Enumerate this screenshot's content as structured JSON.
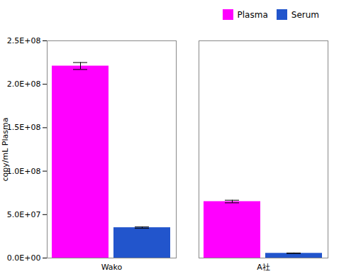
{
  "chart_data": {
    "type": "bar",
    "categories": [
      "Wako",
      "A社"
    ],
    "series": [
      {
        "name": "Plasma",
        "color": "#FF00FF",
        "values": [
          221000000,
          65000000
        ],
        "errors": [
          4000000,
          1500000
        ]
      },
      {
        "name": "Serum",
        "color": "#2255CC",
        "values": [
          35000000,
          5500000
        ],
        "errors": [
          800000,
          300000
        ]
      }
    ],
    "ylabel": "copy/mL Plasma",
    "ylim": [
      0,
      250000000
    ],
    "yticks": [
      {
        "value": 0,
        "label": "0.0E+00"
      },
      {
        "value": 50000000,
        "label": "5.0E+07"
      },
      {
        "value": 100000000,
        "label": "1.0E+08"
      },
      {
        "value": 150000000,
        "label": "1.5E+08"
      },
      {
        "value": 200000000,
        "label": "2.0E+08"
      },
      {
        "value": 250000000,
        "label": "2.5E+08"
      }
    ],
    "legend": "upper right",
    "grid": false
  }
}
